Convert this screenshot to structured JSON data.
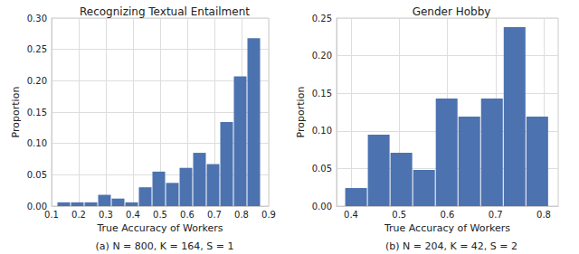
{
  "chart_data": [
    {
      "type": "histogram",
      "title": "Recognizing Textual Entailment",
      "x_label": "True Accuracy of Workers",
      "y_label": "Proportion",
      "annotations": [
        "(a) N = 800, K = 164, S = 1"
      ],
      "bins": [
        0.12,
        0.17,
        0.22,
        0.27,
        0.32,
        0.37,
        0.42,
        0.47,
        0.52,
        0.57,
        0.62,
        0.67,
        0.72,
        0.77,
        0.82,
        0.87
      ],
      "values": [
        0.006,
        0.006,
        0.006,
        0.018,
        0.012,
        0.006,
        0.03,
        0.055,
        0.037,
        0.061,
        0.085,
        0.067,
        0.134,
        0.207,
        0.268
      ],
      "color": "#4c72b0",
      "xlim": [
        0.1,
        0.9
      ],
      "xticks": [
        0.1,
        0.2,
        0.3,
        0.4,
        0.5,
        0.6,
        0.7,
        0.8,
        0.9
      ],
      "ylim": [
        0,
        0.3
      ],
      "yticks": [
        {
          "value": 0,
          "label": "0.00"
        },
        {
          "value": 0.05,
          "label": "0.05"
        },
        {
          "value": 0.1,
          "label": "0.10"
        },
        {
          "value": 0.15,
          "label": "0.15"
        },
        {
          "value": 0.2,
          "label": "0.20"
        },
        {
          "value": 0.25,
          "label": "0.25"
        },
        {
          "value": 0.3,
          "label": "0.30"
        }
      ],
      "grid": true
    },
    {
      "type": "histogram",
      "title": "Gender Hobby",
      "x_label": "True Accuracy of Workers",
      "y_label": "Proportion",
      "annotations": [
        "(b) N = 204, K = 42, S = 2"
      ],
      "bins": [
        0.387,
        0.434,
        0.481,
        0.528,
        0.575,
        0.622,
        0.669,
        0.716,
        0.763,
        0.81
      ],
      "values": [
        0.024,
        0.095,
        0.071,
        0.048,
        0.143,
        0.119,
        0.143,
        0.238,
        0.119
      ],
      "color": "#4c72b0",
      "xlim": [
        0.37,
        0.83
      ],
      "xticks": [
        0.4,
        0.5,
        0.6,
        0.7,
        0.8
      ],
      "ylim": [
        0,
        0.25
      ],
      "yticks": [
        {
          "value": 0,
          "label": "0.00"
        },
        {
          "value": 0.05,
          "label": "0.05"
        },
        {
          "value": 0.1,
          "label": "0.10"
        },
        {
          "value": 0.15,
          "label": "0.15"
        },
        {
          "value": 0.2,
          "label": "0.20"
        },
        {
          "value": 0.25,
          "label": "0.25"
        }
      ],
      "grid": true
    }
  ]
}
